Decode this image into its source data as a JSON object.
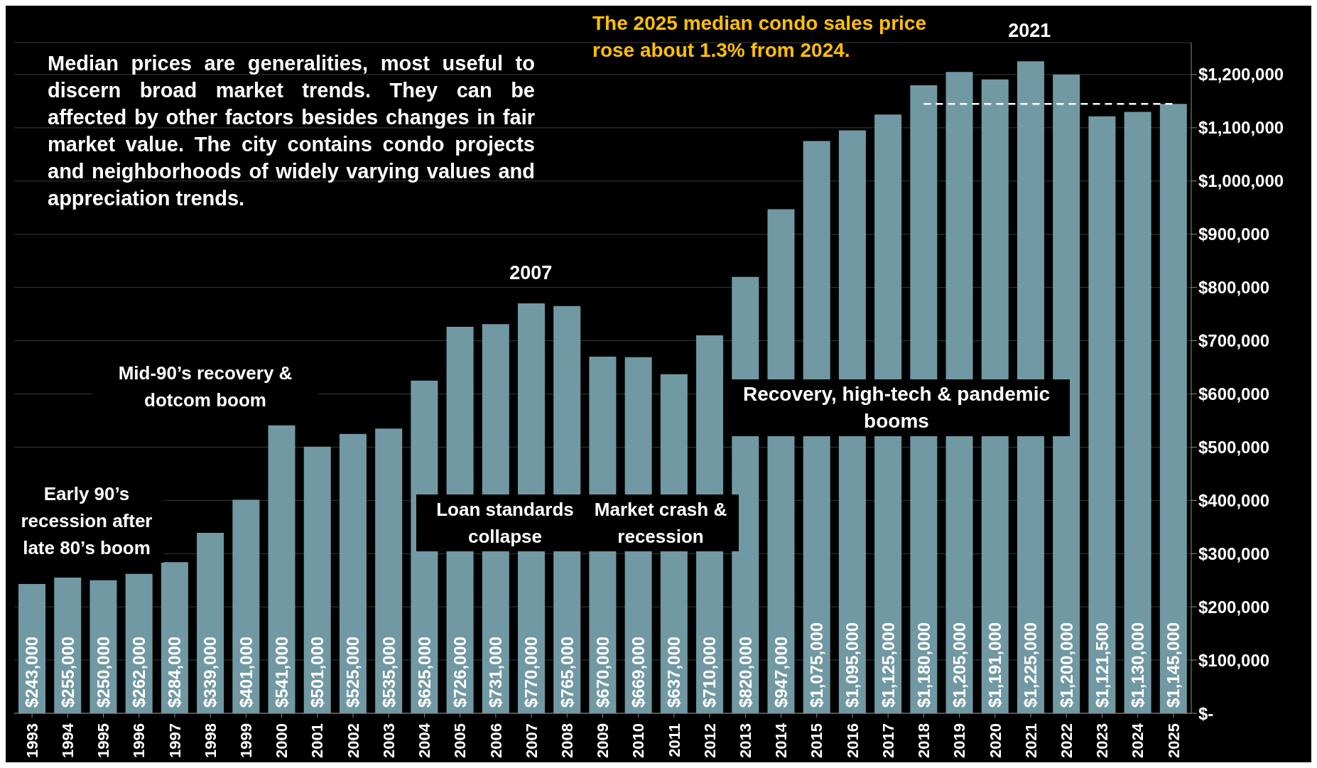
{
  "chart_data": {
    "type": "bar",
    "title": "The 2025 median condo sales price rose about 1.3% from 2024.",
    "annotations": [
      "Median prices are generalities, most useful to discern broad market trends. They can be affected by other factors besides changes in fair market value. The city contains condo projects and neighborhoods of widely varying values and appreciation trends.",
      {
        "text": "2007",
        "x": "2007",
        "y": 770000
      },
      {
        "text": "2021",
        "x": "2021",
        "y": 1225000
      },
      "Early 90’s recession after late 80’s boom",
      "Mid-90’s recovery & dotcom boom",
      "Loan standards collapse",
      "Market crash & recession",
      "Recovery, high-tech & pandemic booms"
    ],
    "categories": [
      "1993",
      "1994",
      "1995",
      "1996",
      "1997",
      "1998",
      "1999",
      "2000",
      "2001",
      "2002",
      "2003",
      "2004",
      "2005",
      "2006",
      "2007",
      "2008",
      "2009",
      "2010",
      "2011",
      "2012",
      "2013",
      "2014",
      "2015",
      "2016",
      "2017",
      "2018",
      "2019",
      "2020",
      "2021",
      "2022",
      "2023",
      "2024",
      "2025"
    ],
    "series": [
      {
        "color": "#7199a3",
        "values": [
          243000,
          255000,
          250000,
          262000,
          284000,
          339000,
          401000,
          541000,
          501000,
          525000,
          535000,
          625000,
          726000,
          731000,
          770000,
          765000,
          670000,
          669000,
          637000,
          710000,
          820000,
          947000,
          1075000,
          1095000,
          1125000,
          1180000,
          1205000,
          1191000,
          1225000,
          1200000,
          1121500,
          1130000,
          1145000
        ],
        "value_labels": [
          "$243,000",
          "$255,000",
          "$250,000",
          "$262,000",
          "$284,000",
          "$339,000",
          "$401,000",
          "$541,000",
          "$501,000",
          "$525,000",
          "$535,000",
          "$625,000",
          "$726,000",
          "$731,000",
          "$770,000",
          "$765,000",
          "$670,000",
          "$669,000",
          "$637,000",
          "$710,000",
          "$820,000",
          "$947,000",
          "$1,075,000",
          "$1,095,000",
          "$1,125,000",
          "$1,180,000",
          "$1,205,000",
          "$1,191,000",
          "$1,225,000",
          "$1,200,000",
          "$1,121,500",
          "$1,130,000",
          "$1,145,000"
        ]
      },
      {
        "type": "line",
        "color": "#ffffff",
        "line_style": "dashed",
        "marker": "none",
        "values": [
          null,
          null,
          null,
          null,
          null,
          null,
          null,
          null,
          null,
          null,
          null,
          null,
          null,
          null,
          null,
          null,
          null,
          null,
          null,
          null,
          null,
          null,
          null,
          null,
          null,
          1145000,
          1145000,
          1145000,
          1145000,
          1145000,
          1145000,
          1145000,
          1145000
        ]
      }
    ],
    "ylim": [
      0,
      1260000
    ],
    "yticks": [
      {
        "value": 0,
        "label": "$-"
      },
      {
        "value": 100000,
        "label": "$100,000"
      },
      {
        "value": 200000,
        "label": "$200,000"
      },
      {
        "value": 300000,
        "label": "$300,000"
      },
      {
        "value": 400000,
        "label": "$400,000"
      },
      {
        "value": 500000,
        "label": "$500,000"
      },
      {
        "value": 600000,
        "label": "$600,000"
      },
      {
        "value": 700000,
        "label": "$700,000"
      },
      {
        "value": 800000,
        "label": "$800,000"
      },
      {
        "value": 900000,
        "label": "$900,000"
      },
      {
        "value": 1000000,
        "label": "$1,000,000"
      },
      {
        "value": 1100000,
        "label": "$1,100,000"
      },
      {
        "value": 1200000,
        "label": "$1,200,000"
      }
    ],
    "grid": "y",
    "legend": false
  }
}
